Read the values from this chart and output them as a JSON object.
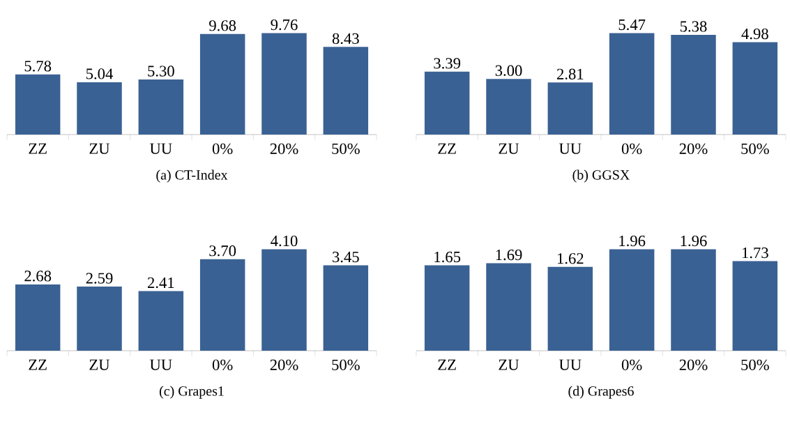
{
  "chart_data": [
    {
      "type": "bar",
      "title": "(a) CT-Index",
      "categories": [
        "ZZ",
        "ZU",
        "UU",
        "0%",
        "20%",
        "50%"
      ],
      "values": [
        5.78,
        5.04,
        5.3,
        9.68,
        9.76,
        8.43
      ],
      "value_labels": [
        "5.78",
        "5.04",
        "5.30",
        "9.68",
        "9.76",
        "8.43"
      ],
      "color": "#3a6193"
    },
    {
      "type": "bar",
      "title": "(b) GGSX",
      "categories": [
        "ZZ",
        "ZU",
        "UU",
        "0%",
        "20%",
        "50%"
      ],
      "values": [
        3.39,
        3.0,
        2.81,
        5.47,
        5.38,
        4.98
      ],
      "value_labels": [
        "3.39",
        "3.00",
        "2.81",
        "5.47",
        "5.38",
        "4.98"
      ],
      "color": "#3a6193"
    },
    {
      "type": "bar",
      "title": "(c) Grapes1",
      "categories": [
        "ZZ",
        "ZU",
        "UU",
        "0%",
        "20%",
        "50%"
      ],
      "values": [
        2.68,
        2.59,
        2.41,
        3.7,
        4.1,
        3.45
      ],
      "value_labels": [
        "2.68",
        "2.59",
        "2.41",
        "3.70",
        "4.10",
        "3.45"
      ],
      "color": "#3a6193"
    },
    {
      "type": "bar",
      "title": "(d) Grapes6",
      "categories": [
        "ZZ",
        "ZU",
        "UU",
        "0%",
        "20%",
        "50%"
      ],
      "values": [
        1.65,
        1.69,
        1.62,
        1.96,
        1.96,
        1.73
      ],
      "value_labels": [
        "1.65",
        "1.69",
        "1.62",
        "1.96",
        "1.96",
        "1.73"
      ],
      "color": "#3a6193"
    }
  ]
}
